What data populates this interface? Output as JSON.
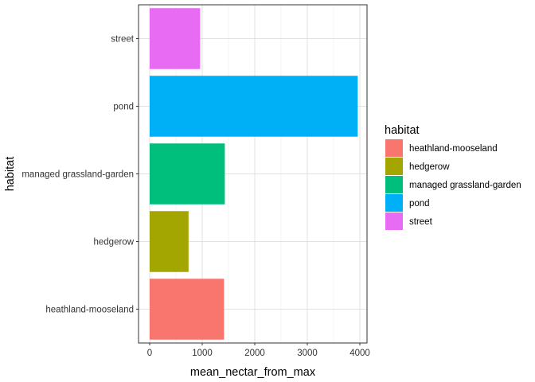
{
  "chart_data": {
    "type": "bar",
    "orientation": "horizontal",
    "categories": [
      "heathland-mooseland",
      "hedgerow",
      "managed grassland-garden",
      "pond",
      "street"
    ],
    "values": [
      1415,
      740,
      1430,
      3960,
      960
    ],
    "colors": [
      "#F8766D",
      "#A3A500",
      "#00BF7D",
      "#00B0F6",
      "#E76BF3"
    ],
    "xlabel": "mean_nectar_from_max",
    "ylabel": "habitat",
    "xlim": [
      0,
      4150
    ],
    "x_ticks": [
      0,
      1000,
      2000,
      3000,
      4000
    ],
    "grid": true,
    "legend": {
      "title": "habitat",
      "position": "right",
      "entries": [
        "heathland-mooseland",
        "hedgerow",
        "managed grassland-garden",
        "pond",
        "street"
      ]
    }
  }
}
